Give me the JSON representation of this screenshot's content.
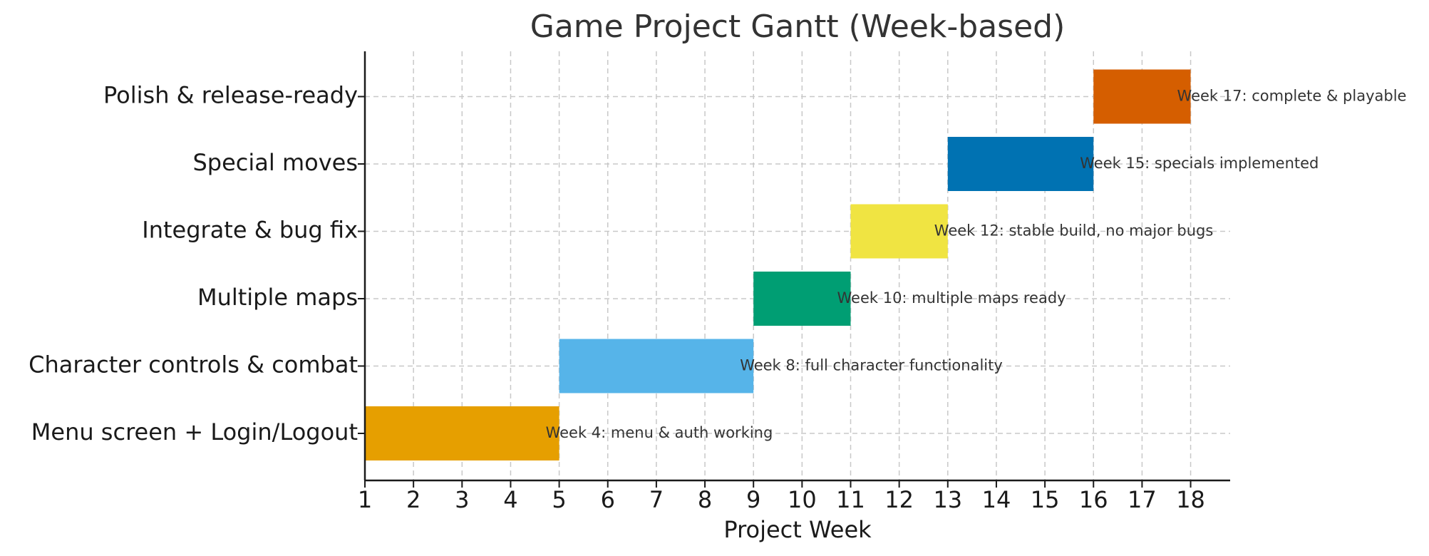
{
  "chart_data": {
    "type": "gantt",
    "title": "Game Project Gantt (Week-based)",
    "xlabel": "Project Week",
    "ylabel": "",
    "xlim": [
      1,
      18.9
    ],
    "xticks": [
      1,
      2,
      3,
      4,
      5,
      6,
      7,
      8,
      9,
      10,
      11,
      12,
      13,
      14,
      15,
      16,
      17,
      18
    ],
    "grid": true,
    "tasks": [
      {
        "name": "Menu screen + Login/Logout",
        "start": 1,
        "end": 5,
        "color": "#E69F00",
        "milestone": "Week 4: menu & auth working"
      },
      {
        "name": "Character controls & combat",
        "start": 5,
        "end": 9,
        "color": "#56B4E9",
        "milestone": "Week 8: full character functionality"
      },
      {
        "name": "Multiple maps",
        "start": 9,
        "end": 11,
        "color": "#009E73",
        "milestone": "Week 10: multiple maps ready"
      },
      {
        "name": "Integrate & bug fix",
        "start": 11,
        "end": 13,
        "color": "#F0E442",
        "milestone": "Week 12: stable build, no major bugs"
      },
      {
        "name": "Special moves",
        "start": 13,
        "end": 16,
        "color": "#0072B2",
        "milestone": "Week 15: specials implemented"
      },
      {
        "name": "Polish & release-ready",
        "start": 16,
        "end": 18,
        "color": "#D55E00",
        "milestone": "Week 17: complete & playable"
      }
    ]
  }
}
